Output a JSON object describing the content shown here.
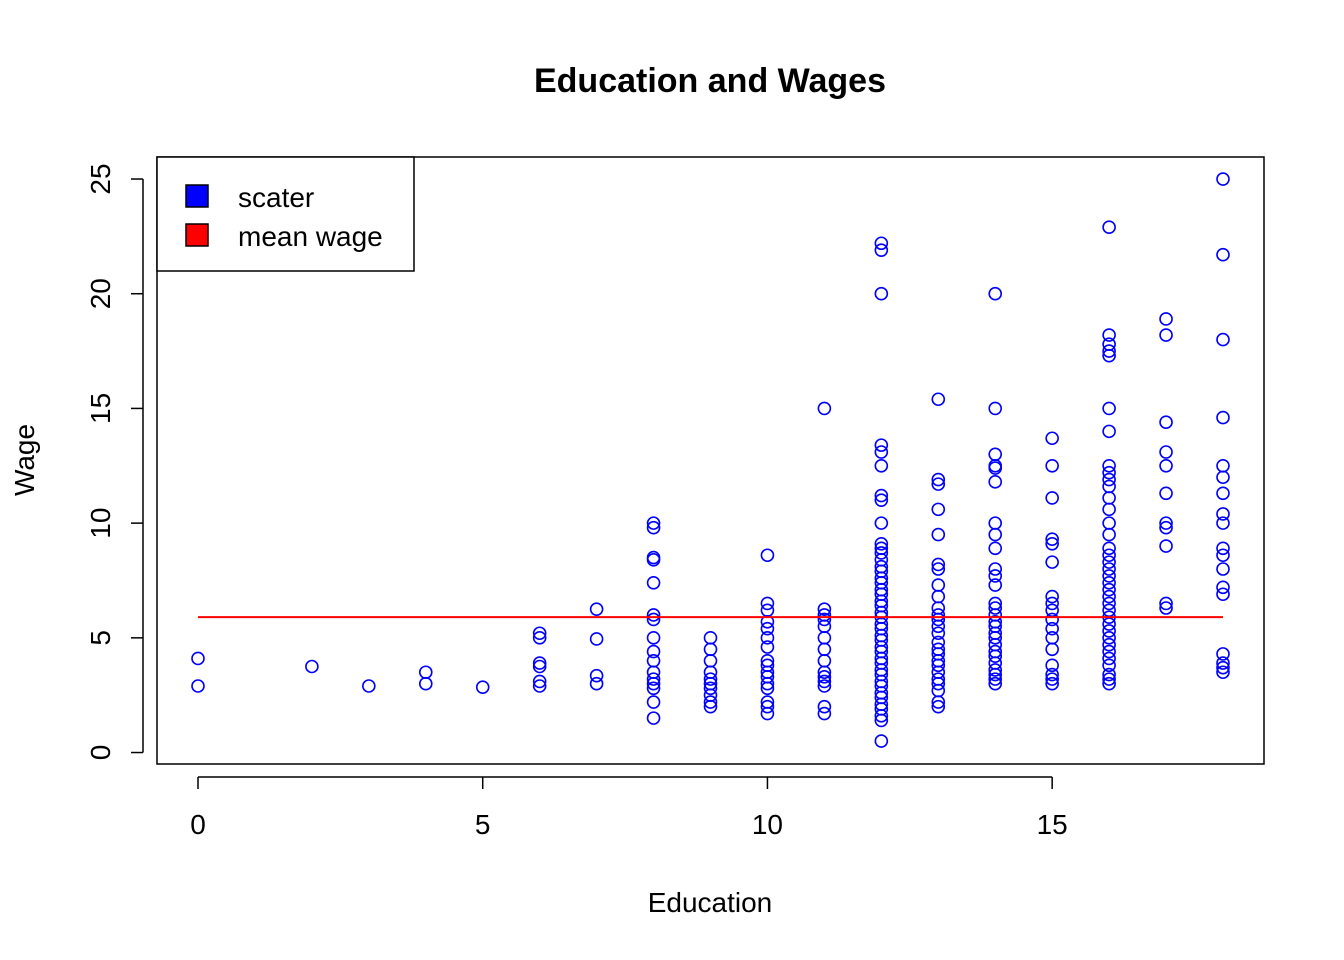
{
  "chart_data": {
    "type": "scatter",
    "title": "Education and Wages",
    "xlabel": "Education",
    "ylabel": "Wage",
    "xlim": [
      -0.72,
      18.72
    ],
    "ylim": [
      -0.5,
      25.96
    ],
    "xticks": [
      0,
      5,
      10,
      15
    ],
    "yticks": [
      0,
      5,
      10,
      15,
      20,
      25
    ],
    "grid": false,
    "legend_position": "top-left",
    "legend": [
      {
        "label": "scater",
        "color": "#0000ff"
      },
      {
        "label": "mean wage",
        "color": "#ff0000"
      }
    ],
    "mean_wage": 5.9,
    "mean_line_x": [
      0,
      18
    ],
    "series": [
      {
        "name": "scater",
        "color": "#0000ff",
        "points": [
          [
            0,
            4.1
          ],
          [
            0,
            2.9
          ],
          [
            2,
            3.75
          ],
          [
            3,
            2.9
          ],
          [
            4,
            3.5
          ],
          [
            4,
            3.0
          ],
          [
            5,
            2.85
          ],
          [
            6,
            5.2
          ],
          [
            6,
            5.0
          ],
          [
            6,
            3.9
          ],
          [
            6,
            3.75
          ],
          [
            6,
            3.1
          ],
          [
            6,
            2.9
          ],
          [
            7,
            6.25
          ],
          [
            7,
            4.95
          ],
          [
            7,
            3.35
          ],
          [
            7,
            3.0
          ],
          [
            8,
            10.0
          ],
          [
            8,
            9.8
          ],
          [
            8,
            8.5
          ],
          [
            8,
            8.4
          ],
          [
            8,
            7.4
          ],
          [
            8,
            6.0
          ],
          [
            8,
            5.8
          ],
          [
            8,
            5.0
          ],
          [
            8,
            4.4
          ],
          [
            8,
            4.0
          ],
          [
            8,
            3.5
          ],
          [
            8,
            3.2
          ],
          [
            8,
            3.0
          ],
          [
            8,
            2.8
          ],
          [
            8,
            2.2
          ],
          [
            8,
            1.5
          ],
          [
            9,
            5.0
          ],
          [
            9,
            4.5
          ],
          [
            9,
            4.0
          ],
          [
            9,
            3.5
          ],
          [
            9,
            3.2
          ],
          [
            9,
            3.0
          ],
          [
            9,
            2.8
          ],
          [
            9,
            2.5
          ],
          [
            9,
            2.2
          ],
          [
            9,
            2.0
          ],
          [
            10,
            8.6
          ],
          [
            10,
            6.5
          ],
          [
            10,
            6.2
          ],
          [
            10,
            5.7
          ],
          [
            10,
            5.4
          ],
          [
            10,
            5.0
          ],
          [
            10,
            4.6
          ],
          [
            10,
            4.0
          ],
          [
            10,
            3.8
          ],
          [
            10,
            3.5
          ],
          [
            10,
            3.3
          ],
          [
            10,
            3.0
          ],
          [
            10,
            2.8
          ],
          [
            10,
            2.2
          ],
          [
            10,
            2.0
          ],
          [
            10,
            1.7
          ],
          [
            11,
            15.0
          ],
          [
            11,
            6.25
          ],
          [
            11,
            6.0
          ],
          [
            11,
            5.8
          ],
          [
            11,
            5.5
          ],
          [
            11,
            5.0
          ],
          [
            11,
            4.5
          ],
          [
            11,
            4.0
          ],
          [
            11,
            3.5
          ],
          [
            11,
            3.3
          ],
          [
            11,
            3.1
          ],
          [
            11,
            2.9
          ],
          [
            11,
            2.0
          ],
          [
            11,
            1.7
          ],
          [
            12,
            22.2
          ],
          [
            12,
            21.9
          ],
          [
            12,
            20.0
          ],
          [
            12,
            13.4
          ],
          [
            12,
            13.1
          ],
          [
            12,
            12.5
          ],
          [
            12,
            11.2
          ],
          [
            12,
            11.0
          ],
          [
            12,
            10.0
          ],
          [
            12,
            9.1
          ],
          [
            12,
            8.9
          ],
          [
            12,
            8.7
          ],
          [
            12,
            8.4
          ],
          [
            12,
            8.1
          ],
          [
            12,
            7.9
          ],
          [
            12,
            7.6
          ],
          [
            12,
            7.4
          ],
          [
            12,
            7.1
          ],
          [
            12,
            6.9
          ],
          [
            12,
            6.6
          ],
          [
            12,
            6.4
          ],
          [
            12,
            6.1
          ],
          [
            12,
            5.9
          ],
          [
            12,
            5.6
          ],
          [
            12,
            5.4
          ],
          [
            12,
            5.1
          ],
          [
            12,
            4.9
          ],
          [
            12,
            4.6
          ],
          [
            12,
            4.4
          ],
          [
            12,
            4.1
          ],
          [
            12,
            3.9
          ],
          [
            12,
            3.6
          ],
          [
            12,
            3.4
          ],
          [
            12,
            3.1
          ],
          [
            12,
            2.9
          ],
          [
            12,
            2.6
          ],
          [
            12,
            2.4
          ],
          [
            12,
            2.1
          ],
          [
            12,
            1.9
          ],
          [
            12,
            1.6
          ],
          [
            12,
            1.4
          ],
          [
            12,
            0.5
          ],
          [
            13,
            15.4
          ],
          [
            13,
            11.9
          ],
          [
            13,
            11.7
          ],
          [
            13,
            10.6
          ],
          [
            13,
            9.5
          ],
          [
            13,
            8.2
          ],
          [
            13,
            8.0
          ],
          [
            13,
            7.3
          ],
          [
            13,
            6.8
          ],
          [
            13,
            6.3
          ],
          [
            13,
            6.0
          ],
          [
            13,
            5.8
          ],
          [
            13,
            5.5
          ],
          [
            13,
            5.2
          ],
          [
            13,
            4.8
          ],
          [
            13,
            4.5
          ],
          [
            13,
            4.3
          ],
          [
            13,
            4.0
          ],
          [
            13,
            3.8
          ],
          [
            13,
            3.5
          ],
          [
            13,
            3.2
          ],
          [
            13,
            3.0
          ],
          [
            13,
            2.7
          ],
          [
            13,
            2.2
          ],
          [
            13,
            2.0
          ],
          [
            14,
            20.0
          ],
          [
            14,
            15.0
          ],
          [
            14,
            13.0
          ],
          [
            14,
            12.5
          ],
          [
            14,
            12.4
          ],
          [
            14,
            11.8
          ],
          [
            14,
            10.0
          ],
          [
            14,
            9.5
          ],
          [
            14,
            8.9
          ],
          [
            14,
            8.0
          ],
          [
            14,
            7.7
          ],
          [
            14,
            7.3
          ],
          [
            14,
            6.5
          ],
          [
            14,
            6.3
          ],
          [
            14,
            6.0
          ],
          [
            14,
            5.7
          ],
          [
            14,
            5.5
          ],
          [
            14,
            5.2
          ],
          [
            14,
            5.0
          ],
          [
            14,
            4.7
          ],
          [
            14,
            4.4
          ],
          [
            14,
            4.2
          ],
          [
            14,
            3.9
          ],
          [
            14,
            3.6
          ],
          [
            14,
            3.4
          ],
          [
            14,
            3.2
          ],
          [
            14,
            3.0
          ],
          [
            15,
            13.7
          ],
          [
            15,
            12.5
          ],
          [
            15,
            11.1
          ],
          [
            15,
            9.3
          ],
          [
            15,
            9.1
          ],
          [
            15,
            8.3
          ],
          [
            15,
            6.8
          ],
          [
            15,
            6.5
          ],
          [
            15,
            6.2
          ],
          [
            15,
            5.8
          ],
          [
            15,
            5.4
          ],
          [
            15,
            5.0
          ],
          [
            15,
            4.5
          ],
          [
            15,
            3.8
          ],
          [
            15,
            3.4
          ],
          [
            15,
            3.2
          ],
          [
            15,
            3.0
          ],
          [
            16,
            22.9
          ],
          [
            16,
            18.2
          ],
          [
            16,
            17.8
          ],
          [
            16,
            17.5
          ],
          [
            16,
            17.3
          ],
          [
            16,
            15.0
          ],
          [
            16,
            14.0
          ],
          [
            16,
            12.5
          ],
          [
            16,
            12.2
          ],
          [
            16,
            11.9
          ],
          [
            16,
            11.6
          ],
          [
            16,
            11.1
          ],
          [
            16,
            10.6
          ],
          [
            16,
            10.0
          ],
          [
            16,
            9.5
          ],
          [
            16,
            8.9
          ],
          [
            16,
            8.6
          ],
          [
            16,
            8.3
          ],
          [
            16,
            8.0
          ],
          [
            16,
            7.7
          ],
          [
            16,
            7.4
          ],
          [
            16,
            7.1
          ],
          [
            16,
            6.8
          ],
          [
            16,
            6.5
          ],
          [
            16,
            6.2
          ],
          [
            16,
            5.9
          ],
          [
            16,
            5.6
          ],
          [
            16,
            5.3
          ],
          [
            16,
            5.0
          ],
          [
            16,
            4.7
          ],
          [
            16,
            4.4
          ],
          [
            16,
            4.1
          ],
          [
            16,
            3.8
          ],
          [
            16,
            3.4
          ],
          [
            16,
            3.2
          ],
          [
            16,
            3.0
          ],
          [
            17,
            18.9
          ],
          [
            17,
            18.2
          ],
          [
            17,
            14.4
          ],
          [
            17,
            13.1
          ],
          [
            17,
            12.5
          ],
          [
            17,
            11.3
          ],
          [
            17,
            10.0
          ],
          [
            17,
            9.8
          ],
          [
            17,
            9.0
          ],
          [
            17,
            6.5
          ],
          [
            17,
            6.3
          ],
          [
            18,
            25.0
          ],
          [
            18,
            21.7
          ],
          [
            18,
            18.0
          ],
          [
            18,
            14.6
          ],
          [
            18,
            12.5
          ],
          [
            18,
            12.0
          ],
          [
            18,
            11.3
          ],
          [
            18,
            10.4
          ],
          [
            18,
            10.0
          ],
          [
            18,
            8.9
          ],
          [
            18,
            8.6
          ],
          [
            18,
            8.0
          ],
          [
            18,
            7.2
          ],
          [
            18,
            6.9
          ],
          [
            18,
            4.3
          ],
          [
            18,
            3.9
          ],
          [
            18,
            3.7
          ],
          [
            18,
            3.5
          ]
        ]
      },
      {
        "name": "mean wage",
        "color": "#ff0000",
        "x": [
          0,
          18
        ],
        "values": [
          5.9,
          5.9
        ]
      }
    ]
  }
}
